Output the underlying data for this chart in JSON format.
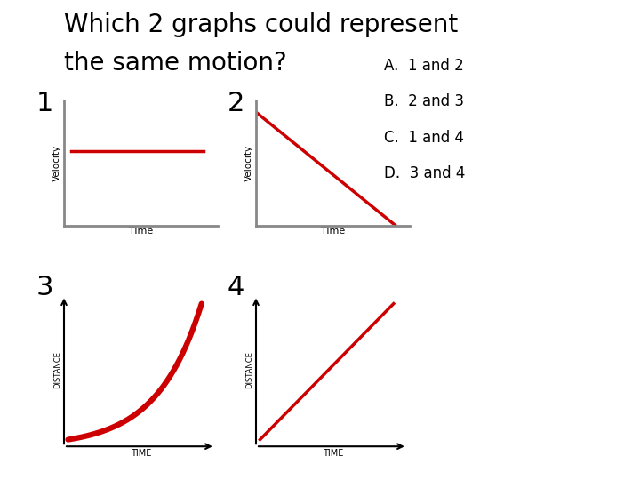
{
  "title_line1": "Which 2 graphs could represent",
  "title_line2": "the same motion?",
  "title_fontsize": 20,
  "background_color": "#ffffff",
  "graph_line_color": "#cc0000",
  "axis_color": "#888888",
  "answer_options": [
    "A.  1 and 2",
    "B.  2 and 3",
    "C.  1 and 4",
    "D.  3 and 4"
  ],
  "graph_labels": [
    "1",
    "2",
    "3",
    "4"
  ],
  "graph1": {
    "xlabel": "Time",
    "ylabel": "Velocity"
  },
  "graph2": {
    "xlabel": "Time",
    "ylabel": "Velocity"
  },
  "graph3": {
    "xlabel": "TIME",
    "ylabel": "DISTANCE"
  },
  "graph4": {
    "xlabel": "TIME",
    "ylabel": "DISTANCE"
  }
}
